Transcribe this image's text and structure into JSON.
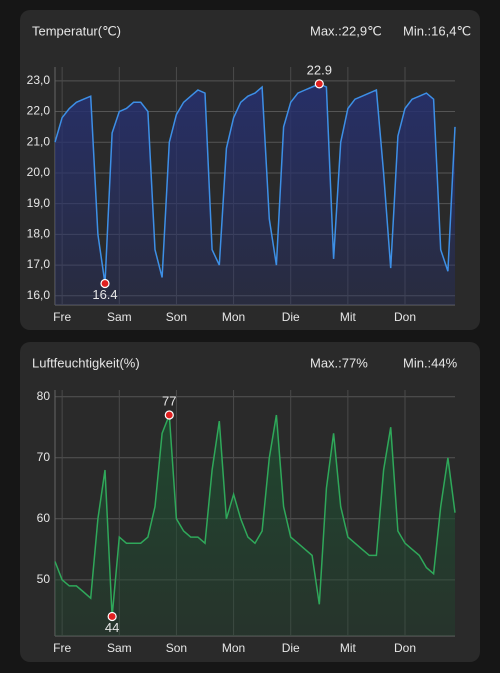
{
  "chart_data": [
    {
      "type": "line",
      "title": "Temperatur(℃)",
      "max_label": "Max.:22,9℃",
      "min_label": "Min.:16,4℃",
      "categories": [
        null,
        "Fre",
        null,
        null,
        null,
        null,
        null,
        null,
        null,
        "Sam",
        null,
        null,
        null,
        null,
        null,
        null,
        null,
        "Son",
        null,
        null,
        null,
        null,
        null,
        null,
        null,
        "Mon",
        null,
        null,
        null,
        null,
        null,
        null,
        null,
        "Die",
        null,
        null,
        null,
        null,
        null,
        null,
        null,
        "Mit",
        null,
        null,
        null,
        null,
        null,
        null,
        null,
        "Don",
        null,
        null,
        null,
        null,
        null,
        null,
        null
      ],
      "values": [
        21.0,
        21.8,
        22.1,
        22.3,
        22.4,
        22.5,
        18.0,
        16.4,
        21.3,
        22.0,
        22.1,
        22.3,
        22.3,
        22.0,
        17.5,
        16.6,
        21.0,
        21.9,
        22.3,
        22.5,
        22.7,
        22.6,
        17.5,
        17.0,
        20.8,
        21.8,
        22.3,
        22.5,
        22.6,
        22.8,
        18.5,
        17.0,
        21.5,
        22.3,
        22.6,
        22.7,
        22.8,
        22.9,
        22.8,
        17.2,
        21.0,
        22.1,
        22.4,
        22.5,
        22.6,
        22.7,
        20.0,
        16.9,
        21.2,
        22.1,
        22.4,
        22.5,
        22.6,
        22.4,
        17.5,
        16.8,
        21.5
      ],
      "value_labels": [
        null,
        null,
        null,
        null,
        null,
        null,
        null,
        "16.4",
        null,
        null,
        null,
        null,
        null,
        null,
        null,
        null,
        null,
        null,
        null,
        null,
        null,
        null,
        null,
        null,
        null,
        null,
        null,
        null,
        null,
        null,
        null,
        null,
        null,
        null,
        null,
        null,
        null,
        "22.9",
        null,
        null,
        null,
        null,
        null,
        null,
        null,
        null,
        null,
        null,
        null,
        null,
        null,
        null,
        null,
        null,
        null,
        null,
        null
      ],
      "color": "#3d8fe6",
      "fill": "#26306e",
      "ylim": [
        15.7,
        23.45
      ],
      "yticks": [
        {
          "value": 16,
          "label": "16,0"
        },
        {
          "value": 17,
          "label": "17,0"
        },
        {
          "value": 18,
          "label": "18,0"
        },
        {
          "value": 19,
          "label": "19,0"
        },
        {
          "value": 20,
          "label": "20,0"
        },
        {
          "value": 21,
          "label": "21,0"
        },
        {
          "value": 22,
          "label": "22,0"
        },
        {
          "value": 23,
          "label": "23,0"
        }
      ],
      "grid": true
    },
    {
      "type": "line",
      "title": "Luftfeuchtigkeit(%)",
      "max_label": "Max.:77%",
      "min_label": "Min.:44%",
      "categories": [
        null,
        "Fre",
        null,
        null,
        null,
        null,
        null,
        null,
        null,
        "Sam",
        null,
        null,
        null,
        null,
        null,
        null,
        null,
        "Son",
        null,
        null,
        null,
        null,
        null,
        null,
        null,
        "Mon",
        null,
        null,
        null,
        null,
        null,
        null,
        null,
        "Die",
        null,
        null,
        null,
        null,
        null,
        null,
        null,
        "Mit",
        null,
        null,
        null,
        null,
        null,
        null,
        null,
        "Don",
        null,
        null,
        null,
        null,
        null,
        null,
        null
      ],
      "values": [
        53,
        50,
        49,
        49,
        48,
        47,
        60,
        68,
        44,
        57,
        56,
        56,
        56,
        57,
        62,
        74,
        77,
        60,
        58,
        57,
        57,
        56,
        68,
        76,
        60,
        64,
        60,
        57,
        56,
        58,
        70,
        77,
        62,
        57,
        56,
        55,
        54,
        46,
        65,
        74,
        62,
        57,
        56,
        55,
        54,
        54,
        68,
        75,
        58,
        56,
        55,
        54,
        52,
        51,
        62,
        70,
        61
      ],
      "value_labels": [
        null,
        null,
        null,
        null,
        null,
        null,
        null,
        null,
        "44",
        null,
        null,
        null,
        null,
        null,
        null,
        null,
        "77",
        null,
        null,
        null,
        null,
        null,
        null,
        null,
        null,
        null,
        null,
        null,
        null,
        null,
        null,
        null,
        null,
        null,
        null,
        null,
        null,
        null,
        null,
        null,
        null,
        null,
        null,
        null,
        null,
        null,
        null,
        null,
        null,
        null,
        null,
        null,
        null,
        null,
        null,
        null,
        null
      ],
      "color": "#2fa85a",
      "fill": "#1f4a30",
      "ylim": [
        40.8,
        81.1
      ],
      "yticks": [
        50,
        60,
        70,
        80
      ],
      "grid": true
    }
  ]
}
